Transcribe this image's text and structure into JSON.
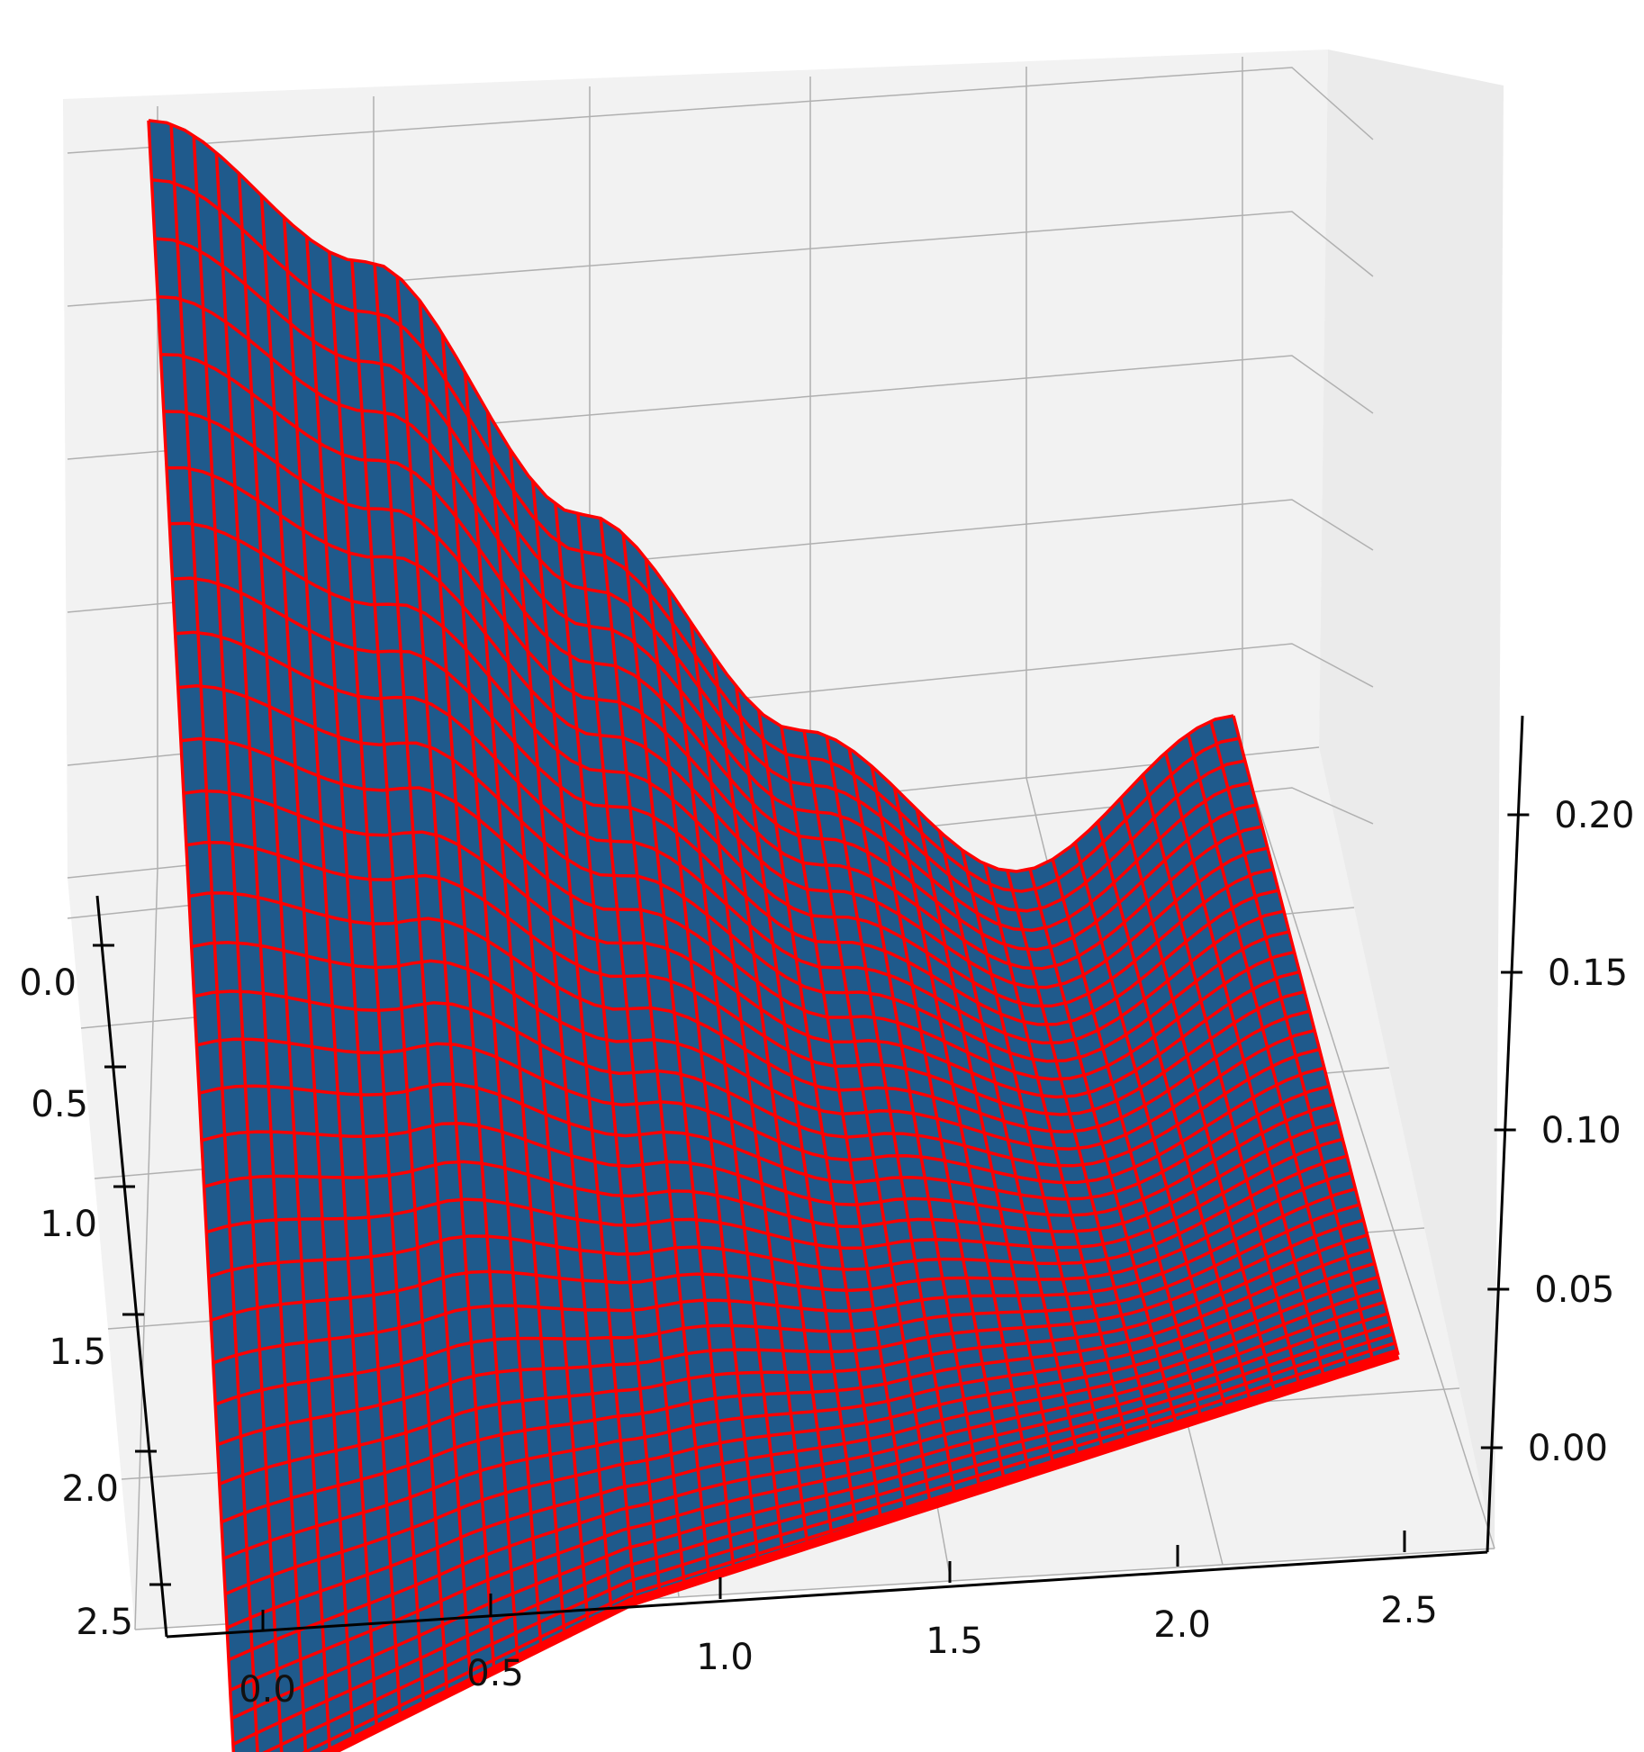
{
  "chart_data": {
    "type": "surface3d",
    "title": "",
    "xlabel": "",
    "ylabel": "",
    "zlabel": "",
    "x_ticks": [
      "0.0",
      "0.5",
      "1.0",
      "1.5",
      "2.0",
      "2.5"
    ],
    "y_ticks": [
      "0.0",
      "0.5",
      "1.0",
      "1.5",
      "2.0",
      "2.5"
    ],
    "z_ticks": [
      "0.00",
      "0.05",
      "0.10",
      "0.15",
      "0.20"
    ],
    "xlim": [
      0,
      2.5
    ],
    "ylim": [
      0,
      2.5
    ],
    "zlim": [
      0,
      0.2
    ],
    "grid": true,
    "surface_color": "#1f5a8c",
    "wireframe_color": "#ff0000",
    "pane_color": "#f2f2f2",
    "surface_sample": {
      "x": [
        0.0,
        0.5,
        1.0,
        1.5,
        2.0,
        2.5
      ],
      "front_edge_y0_z": [
        0.21,
        0.17,
        0.1,
        0.04,
        0.0,
        0.04
      ],
      "back_edge_y2_5_z": [
        0.0,
        0.0,
        0.0,
        0.0,
        0.0,
        0.0
      ]
    }
  }
}
